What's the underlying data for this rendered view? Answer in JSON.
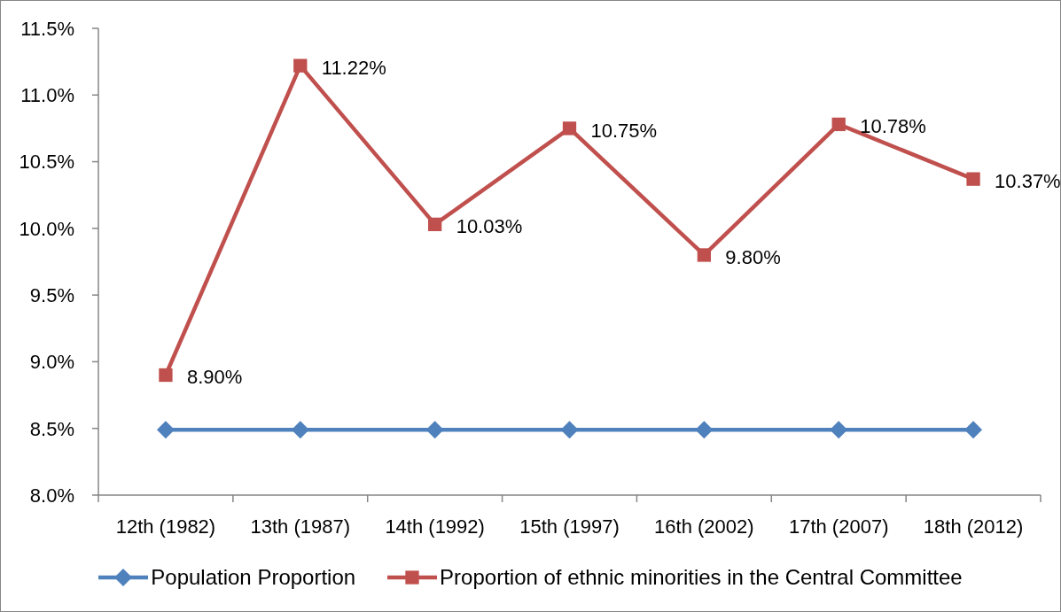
{
  "chart_data": {
    "type": "line",
    "categories": [
      "12th (1982)",
      "13th (1987)",
      "14th (1992)",
      "15th (1997)",
      "16th (2002)",
      "17th (2007)",
      "18th (2012)"
    ],
    "series": [
      {
        "name": "Population Proportion",
        "color": "#4f81bd",
        "marker": "diamond",
        "values": [
          8.49,
          8.49,
          8.49,
          8.49,
          8.49,
          8.49,
          8.49
        ]
      },
      {
        "name": "Proportion of ethnic minorities in the Central Committee",
        "color": "#c0504d",
        "marker": "square",
        "values": [
          8.9,
          11.22,
          10.03,
          10.75,
          9.8,
          10.78,
          10.37
        ],
        "value_labels": [
          "8.90%",
          "11.22%",
          "10.03%",
          "10.75%",
          "9.80%",
          "10.78%",
          "10.37%"
        ]
      }
    ],
    "ylim": [
      8,
      11.5
    ],
    "yticks": [
      {
        "value": 8,
        "label": "8.0%"
      },
      {
        "value": 8.5,
        "label": "8.5%"
      },
      {
        "value": 9,
        "label": "9.0%"
      },
      {
        "value": 9.5,
        "label": "9.5%"
      },
      {
        "value": 10,
        "label": "10.0%"
      },
      {
        "value": 10.5,
        "label": "10.5%"
      },
      {
        "value": 11,
        "label": "11.0%"
      },
      {
        "value": 11.5,
        "label": "11.5%"
      }
    ],
    "legend": "bottom",
    "line_style": "solid"
  }
}
